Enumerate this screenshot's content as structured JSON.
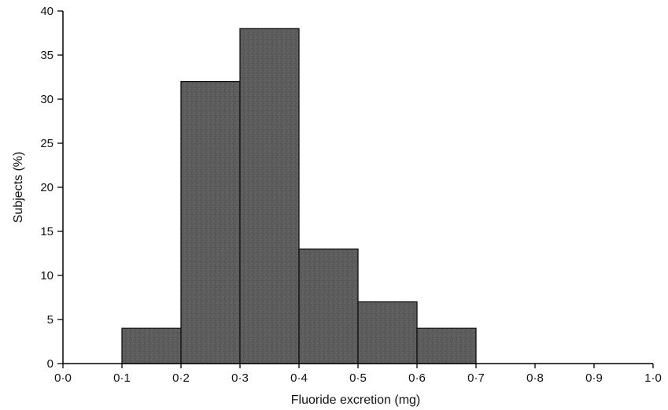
{
  "chart_data": {
    "type": "bar",
    "title": "",
    "xlabel": "Fluoride excretion (mg)",
    "ylabel": "Subjects (%)",
    "xlim": [
      0,
      1.0
    ],
    "ylim": [
      0,
      40
    ],
    "grid": false,
    "bar_color": "#5a5a5a",
    "bins": [
      {
        "start": 0.1,
        "end": 0.2,
        "value": 4
      },
      {
        "start": 0.2,
        "end": 0.3,
        "value": 32
      },
      {
        "start": 0.3,
        "end": 0.4,
        "value": 38
      },
      {
        "start": 0.4,
        "end": 0.5,
        "value": 13
      },
      {
        "start": 0.5,
        "end": 0.6,
        "value": 7
      },
      {
        "start": 0.6,
        "end": 0.7,
        "value": 4
      }
    ],
    "x_ticks": [
      {
        "value": 0.0,
        "label": "0·0"
      },
      {
        "value": 0.1,
        "label": "0·1"
      },
      {
        "value": 0.2,
        "label": "0·2"
      },
      {
        "value": 0.3,
        "label": "0·3"
      },
      {
        "value": 0.4,
        "label": "0·4"
      },
      {
        "value": 0.5,
        "label": "0·5"
      },
      {
        "value": 0.6,
        "label": "0·6"
      },
      {
        "value": 0.7,
        "label": "0·7"
      },
      {
        "value": 0.8,
        "label": "0·8"
      },
      {
        "value": 0.9,
        "label": "0·9"
      },
      {
        "value": 1.0,
        "label": "1·0"
      }
    ],
    "y_ticks": [
      {
        "value": 0,
        "label": "0"
      },
      {
        "value": 5,
        "label": "5"
      },
      {
        "value": 10,
        "label": "10"
      },
      {
        "value": 15,
        "label": "15"
      },
      {
        "value": 20,
        "label": "20"
      },
      {
        "value": 25,
        "label": "25"
      },
      {
        "value": 30,
        "label": "30"
      },
      {
        "value": 35,
        "label": "35"
      },
      {
        "value": 40,
        "label": "40"
      }
    ]
  }
}
